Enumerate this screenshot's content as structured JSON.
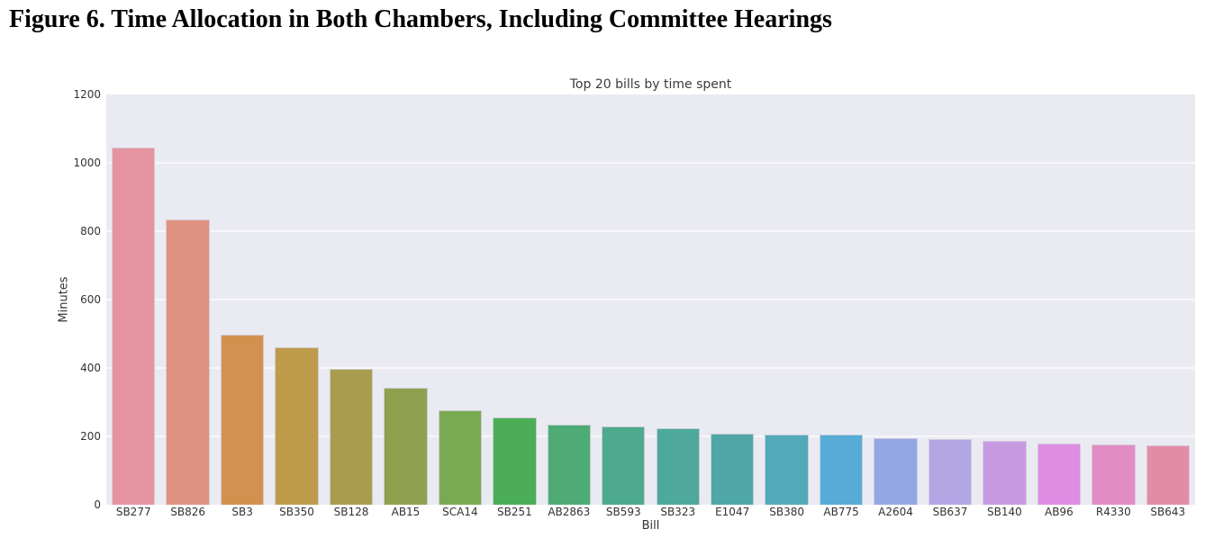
{
  "figure_title": "Figure 6. Time Allocation in Both Chambers, Including Committee Hearings",
  "chart_data": {
    "type": "bar",
    "title": "Top 20 bills by time spent",
    "xlabel": "Bill",
    "ylabel": "Minutes",
    "ylim": [
      0,
      1200
    ],
    "yticks": [
      0,
      200,
      400,
      600,
      800,
      1000,
      1200
    ],
    "grid": true,
    "legend": "none",
    "plot_background": "#eaeaf2",
    "gridline_color": "#f7f7fa",
    "categories": [
      "SB277",
      "SB826",
      "SB3",
      "SB350",
      "SB128",
      "AB15",
      "SCA14",
      "SB251",
      "AB2863",
      "SB593",
      "SB323",
      "E1047",
      "SB380",
      "AB775",
      "A2604",
      "SB637",
      "SB140",
      "AB96",
      "R4330",
      "SB643"
    ],
    "values": [
      1045,
      835,
      497,
      460,
      398,
      343,
      276,
      254,
      233,
      228,
      225,
      208,
      206,
      204,
      196,
      191,
      188,
      180,
      177,
      174
    ],
    "bar_colors": [
      "#e593a1",
      "#e09282",
      "#d39150",
      "#bd9b4a",
      "#a99c4e",
      "#8fa14f",
      "#7aa953",
      "#4bae57",
      "#4fab76",
      "#4daa8c",
      "#4ea89d",
      "#4fa7a8",
      "#52aab8",
      "#58abd6",
      "#93a8e2",
      "#b3a6e4",
      "#c89ae2",
      "#dd8de2",
      "#e18cc2",
      "#e38ca8"
    ]
  }
}
